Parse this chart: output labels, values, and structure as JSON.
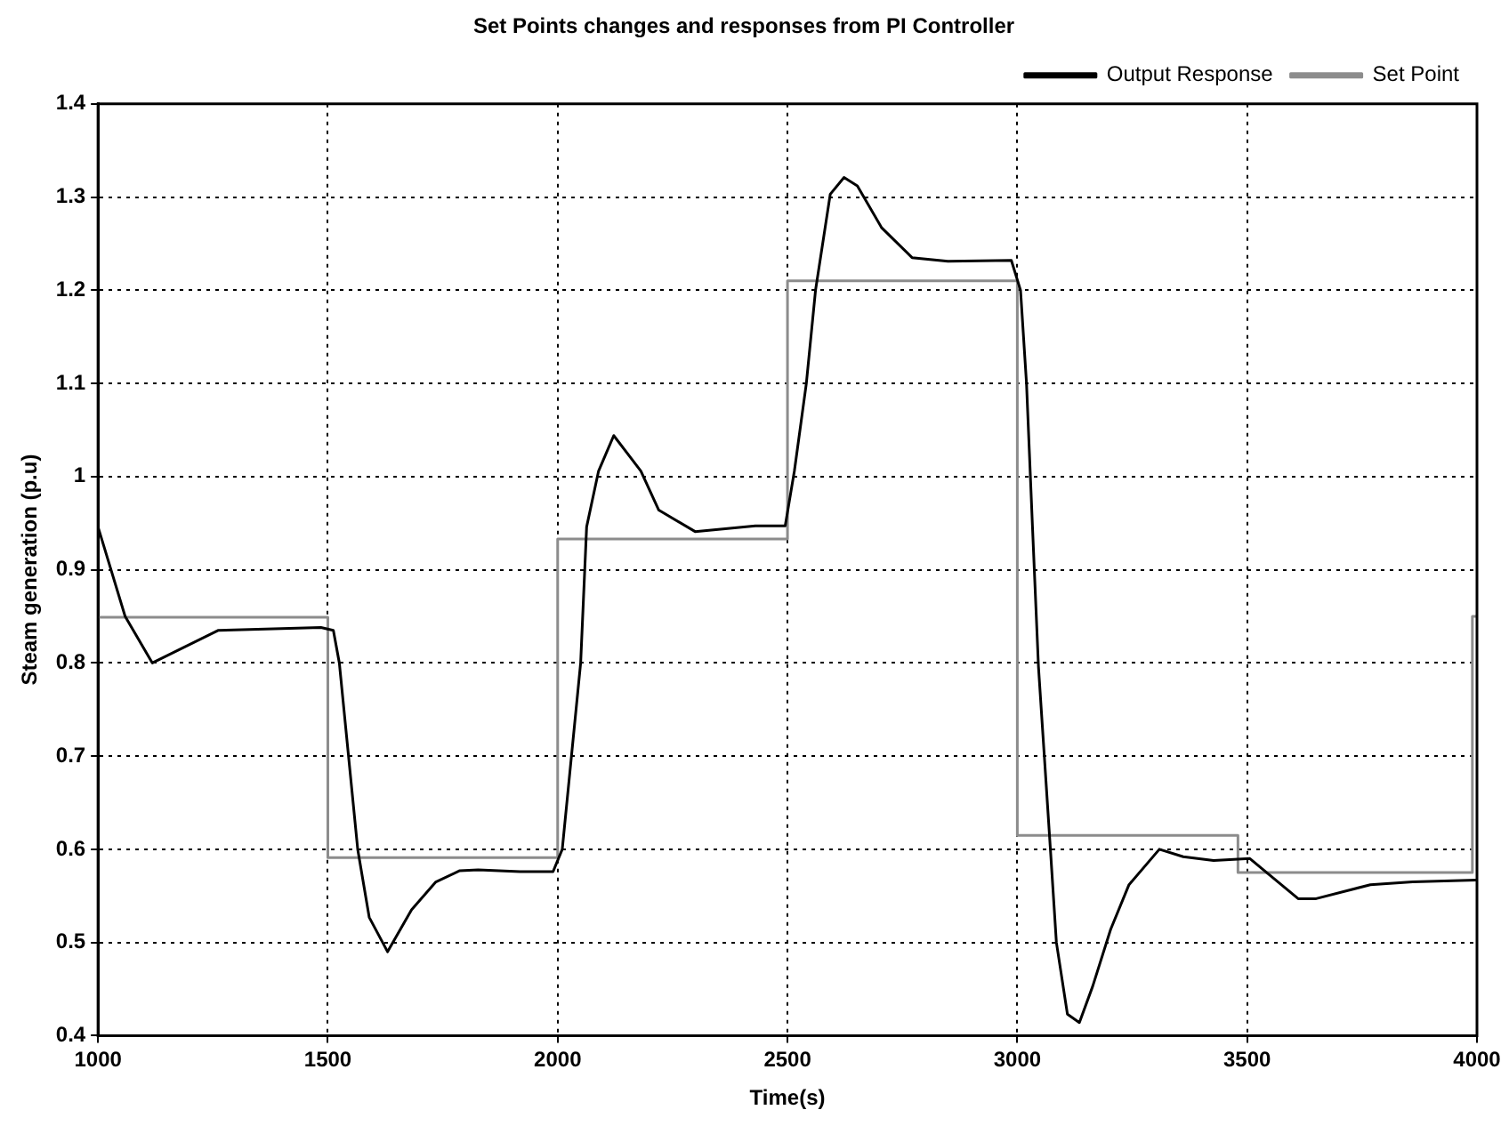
{
  "chart_data": {
    "type": "line",
    "title": "Set Points changes and responses from PI Controller",
    "xlabel": "Time(s)",
    "ylabel": "Steam generation (p.u)",
    "xlim": [
      1000,
      4000
    ],
    "xticks": [
      1000,
      1500,
      2000,
      2500,
      3000,
      3500,
      4000
    ],
    "ylim": [
      0.4,
      1.4
    ],
    "yticks": [
      0.4,
      0.5,
      0.6,
      0.7,
      0.8,
      0.9,
      1,
      1.1,
      1.2,
      1.3,
      1.4
    ],
    "grid": true,
    "legend": "top right",
    "marker": "none",
    "line_style": "solid",
    "series": [
      {
        "name": "Output Response",
        "color": "#000000",
        "x": [
          1000,
          1059,
          1118,
          1262,
          1485,
          1512,
          1525,
          1545,
          1565,
          1590,
          1630,
          1682,
          1735,
          1787,
          1827,
          1918,
          1990,
          2010,
          2030,
          2050,
          2063,
          2089,
          2122,
          2181,
          2220,
          2299,
          2430,
          2495,
          2515,
          2541,
          2561,
          2593,
          2623,
          2652,
          2705,
          2771,
          2849,
          2987,
          3007,
          3020,
          3033,
          3046,
          3059,
          3072,
          3085,
          3109,
          3135,
          3164,
          3203,
          3243,
          3309,
          3361,
          3427,
          3506,
          3545,
          3611,
          3650,
          3768,
          3860,
          3998
        ],
        "values": [
          0.946,
          0.85,
          0.8,
          0.835,
          0.838,
          0.835,
          0.8,
          0.7,
          0.6,
          0.527,
          0.49,
          0.535,
          0.565,
          0.577,
          0.578,
          0.576,
          0.576,
          0.6,
          0.7,
          0.8,
          0.946,
          1.006,
          1.044,
          1.006,
          0.964,
          0.941,
          0.947,
          0.947,
          1.006,
          1.1,
          1.2,
          1.303,
          1.321,
          1.312,
          1.267,
          1.235,
          1.231,
          1.232,
          1.2,
          1.1,
          0.946,
          0.796,
          0.698,
          0.6,
          0.5,
          0.423,
          0.414,
          0.453,
          0.514,
          0.562,
          0.6,
          0.592,
          0.588,
          0.59,
          0.574,
          0.547,
          0.547,
          0.562,
          0.565,
          0.567
        ]
      },
      {
        "name": "Set Point",
        "color": "#8c8c8c",
        "x": [
          1000,
          1500,
          1500,
          2000,
          2000,
          2500,
          2500,
          3000,
          3000,
          3480,
          3480,
          3990,
          3990,
          4000
        ],
        "values": [
          0.849,
          0.849,
          0.591,
          0.591,
          0.933,
          0.933,
          1.21,
          1.21,
          0.615,
          0.615,
          0.575,
          0.575,
          0.85,
          0.85
        ]
      }
    ]
  }
}
